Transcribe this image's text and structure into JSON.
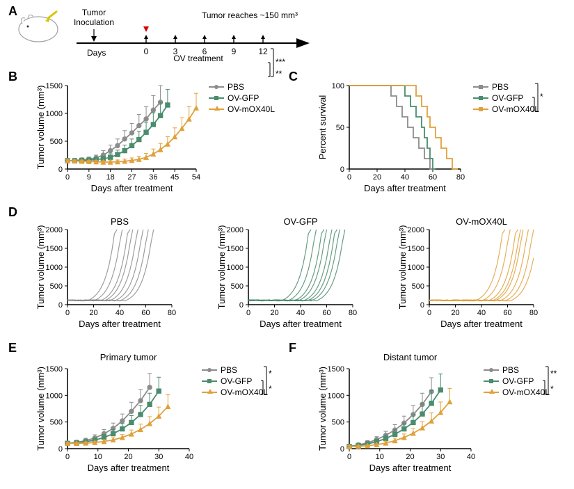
{
  "colors": {
    "pbs": "#8c8c8c",
    "gfp": "#4a8c6d",
    "mox": "#e0a13c",
    "axis": "#000000",
    "text": "#000000",
    "bg": "#ffffff"
  },
  "fonts": {
    "panel_letter_pt": 14,
    "axis_label_pt": 10,
    "tick_pt": 8,
    "title_pt": 10
  },
  "panelA": {
    "letter": "A",
    "labels": {
      "inoc": "Tumor\nInoculation",
      "reach": "Tumor reaches ~150 mm³",
      "days_word": "Days",
      "ov": "OV treatment"
    },
    "days": [
      0,
      3,
      6,
      9,
      12
    ]
  },
  "panelB": {
    "letter": "B",
    "xlabel": "Days after treatment",
    "ylabel": "Tumor volume (mm³)",
    "xlim": [
      0,
      54
    ],
    "ylim": [
      0,
      1500
    ],
    "xticks": [
      0,
      9,
      18,
      27,
      36,
      45,
      54
    ],
    "yticks": [
      0,
      500,
      1000,
      1500
    ],
    "legend": [
      "PBS",
      "OV-GFP",
      "OV-mOX40L"
    ],
    "sig": [
      "***",
      "**"
    ],
    "series": {
      "pbs": {
        "x": [
          0,
          3,
          6,
          9,
          12,
          15,
          18,
          21,
          24,
          27,
          30,
          33,
          36,
          39
        ],
        "y": [
          150,
          155,
          165,
          175,
          200,
          250,
          330,
          420,
          540,
          650,
          780,
          900,
          1060,
          1200
        ],
        "err": [
          30,
          30,
          35,
          40,
          50,
          80,
          100,
          120,
          150,
          170,
          200,
          220,
          260,
          300
        ]
      },
      "gfp": {
        "x": [
          0,
          3,
          6,
          9,
          12,
          15,
          18,
          21,
          24,
          27,
          30,
          33,
          36,
          39,
          42
        ],
        "y": [
          150,
          150,
          155,
          160,
          170,
          185,
          210,
          260,
          330,
          420,
          530,
          660,
          800,
          960,
          1150
        ],
        "err": [
          25,
          25,
          28,
          30,
          35,
          45,
          65,
          80,
          100,
          120,
          150,
          180,
          210,
          240,
          280
        ]
      },
      "mox": {
        "x": [
          0,
          3,
          6,
          9,
          12,
          15,
          18,
          21,
          24,
          27,
          30,
          33,
          36,
          39,
          42,
          45,
          48,
          51,
          54
        ],
        "y": [
          150,
          145,
          140,
          135,
          130,
          125,
          125,
          130,
          140,
          155,
          175,
          210,
          270,
          350,
          450,
          580,
          730,
          900,
          1100
        ],
        "err": [
          20,
          20,
          20,
          22,
          22,
          25,
          28,
          32,
          38,
          45,
          55,
          70,
          90,
          110,
          130,
          160,
          190,
          220,
          260
        ]
      }
    }
  },
  "panelC": {
    "letter": "C",
    "xlabel": "Days after treatment",
    "ylabel": "Percent survival",
    "xlim": [
      0,
      80
    ],
    "ylim": [
      0,
      100
    ],
    "xticks": [
      0,
      20,
      40,
      60,
      80
    ],
    "yticks": [
      0,
      50,
      100
    ],
    "legend": [
      "PBS",
      "OV-GFP",
      "OV-mOX40L"
    ],
    "sig": [
      "*",
      "*"
    ],
    "series": {
      "pbs": {
        "steps": [
          [
            0,
            100
          ],
          [
            30,
            100
          ],
          [
            30,
            87.5
          ],
          [
            34,
            87.5
          ],
          [
            34,
            75
          ],
          [
            38,
            75
          ],
          [
            38,
            62.5
          ],
          [
            42,
            62.5
          ],
          [
            42,
            50
          ],
          [
            46,
            50
          ],
          [
            46,
            37.5
          ],
          [
            50,
            37.5
          ],
          [
            50,
            25
          ],
          [
            54,
            25
          ],
          [
            54,
            12.5
          ],
          [
            58,
            12.5
          ],
          [
            58,
            0
          ],
          [
            62,
            0
          ]
        ]
      },
      "gfp": {
        "steps": [
          [
            0,
            100
          ],
          [
            40,
            100
          ],
          [
            40,
            87.5
          ],
          [
            44,
            87.5
          ],
          [
            44,
            75
          ],
          [
            48,
            75
          ],
          [
            48,
            62.5
          ],
          [
            52,
            62.5
          ],
          [
            52,
            50
          ],
          [
            54,
            50
          ],
          [
            54,
            37.5
          ],
          [
            56,
            37.5
          ],
          [
            56,
            25
          ],
          [
            58,
            25
          ],
          [
            58,
            12.5
          ],
          [
            60,
            12.5
          ],
          [
            60,
            0
          ],
          [
            62,
            0
          ]
        ]
      },
      "mox": {
        "steps": [
          [
            0,
            100
          ],
          [
            48,
            100
          ],
          [
            48,
            87.5
          ],
          [
            52,
            87.5
          ],
          [
            52,
            75
          ],
          [
            56,
            75
          ],
          [
            56,
            62.5
          ],
          [
            58,
            62.5
          ],
          [
            58,
            50
          ],
          [
            62,
            50
          ],
          [
            62,
            37.5
          ],
          [
            66,
            37.5
          ],
          [
            66,
            25
          ],
          [
            70,
            25
          ],
          [
            70,
            12.5
          ],
          [
            74,
            12.5
          ],
          [
            74,
            0
          ],
          [
            78,
            0
          ]
        ]
      }
    }
  },
  "panelD": {
    "letter": "D",
    "titles": [
      "PBS",
      "OV-GFP",
      "OV-mOX40L"
    ],
    "xlabel": "Days after treatment",
    "ylabel": "Tumor volume (mm³)",
    "xlim": [
      0,
      80
    ],
    "ylim": [
      0,
      2000
    ],
    "xticks": [
      0,
      20,
      40,
      60,
      80
    ],
    "yticks": [
      0,
      500,
      1000,
      1500,
      2000
    ],
    "n_lines": 8,
    "inflection": {
      "pbs": [
        15,
        20,
        25,
        28,
        32,
        36,
        40,
        44
      ],
      "gfp": [
        25,
        30,
        35,
        38,
        42,
        45,
        48,
        52
      ],
      "mox": [
        35,
        40,
        45,
        48,
        50,
        54,
        58,
        62
      ]
    }
  },
  "panelE": {
    "letter": "E",
    "title": "Primary tumor",
    "xlabel": "Days after treatment",
    "ylabel": "Tumor volume (mm³)",
    "xlim": [
      0,
      40
    ],
    "ylim": [
      0,
      1500
    ],
    "xticks": [
      0,
      10,
      20,
      30,
      40
    ],
    "yticks": [
      0,
      500,
      1000,
      1500
    ],
    "legend": [
      "PBS",
      "OV-GFP",
      "OV-mOX40L"
    ],
    "sig": [
      "*",
      "*"
    ],
    "series": {
      "pbs": {
        "x": [
          0,
          3,
          6,
          9,
          12,
          15,
          18,
          21,
          24,
          27
        ],
        "y": [
          100,
          120,
          150,
          200,
          280,
          380,
          520,
          700,
          900,
          1150
        ],
        "err": [
          30,
          35,
          45,
          60,
          80,
          100,
          130,
          170,
          210,
          260
        ]
      },
      "gfp": {
        "x": [
          0,
          3,
          6,
          9,
          12,
          15,
          18,
          21,
          24,
          27,
          30
        ],
        "y": [
          100,
          110,
          130,
          160,
          210,
          280,
          370,
          490,
          640,
          830,
          1080
        ],
        "err": [
          25,
          30,
          35,
          45,
          60,
          80,
          100,
          130,
          170,
          210,
          260
        ]
      },
      "mox": {
        "x": [
          0,
          3,
          6,
          9,
          12,
          15,
          18,
          21,
          24,
          27,
          30,
          33
        ],
        "y": [
          100,
          100,
          105,
          115,
          135,
          165,
          210,
          275,
          360,
          470,
          610,
          790
        ],
        "err": [
          20,
          20,
          22,
          25,
          32,
          42,
          55,
          75,
          100,
          130,
          170,
          220
        ]
      }
    }
  },
  "panelF": {
    "letter": "F",
    "title": "Distant tumor",
    "xlabel": "Days after treatment",
    "ylabel": "Tumor volume (mm³)",
    "xlim": [
      0,
      40
    ],
    "ylim": [
      0,
      1500
    ],
    "xticks": [
      0,
      10,
      20,
      30,
      40
    ],
    "yticks": [
      0,
      500,
      1000,
      1500
    ],
    "legend": [
      "PBS",
      "OV-GFP",
      "OV-mOX40L"
    ],
    "sig": [
      "*",
      "**"
    ],
    "series": {
      "pbs": {
        "x": [
          0,
          3,
          6,
          9,
          12,
          15,
          18,
          21,
          24,
          27
        ],
        "y": [
          40,
          70,
          110,
          170,
          250,
          350,
          480,
          640,
          830,
          1070
        ],
        "err": [
          25,
          30,
          40,
          55,
          75,
          100,
          130,
          170,
          210,
          260
        ]
      },
      "gfp": {
        "x": [
          0,
          3,
          6,
          9,
          12,
          15,
          18,
          21,
          24,
          27,
          30
        ],
        "y": [
          40,
          60,
          90,
          130,
          190,
          270,
          370,
          490,
          650,
          850,
          1100
        ],
        "err": [
          22,
          28,
          35,
          48,
          65,
          85,
          110,
          145,
          190,
          240,
          300
        ]
      },
      "mox": {
        "x": [
          0,
          3,
          6,
          9,
          12,
          15,
          18,
          21,
          24,
          27,
          30,
          33
        ],
        "y": [
          40,
          45,
          55,
          75,
          105,
          150,
          210,
          290,
          390,
          520,
          680,
          880
        ],
        "err": [
          18,
          20,
          23,
          28,
          35,
          48,
          65,
          88,
          115,
          150,
          195,
          250
        ]
      }
    }
  }
}
